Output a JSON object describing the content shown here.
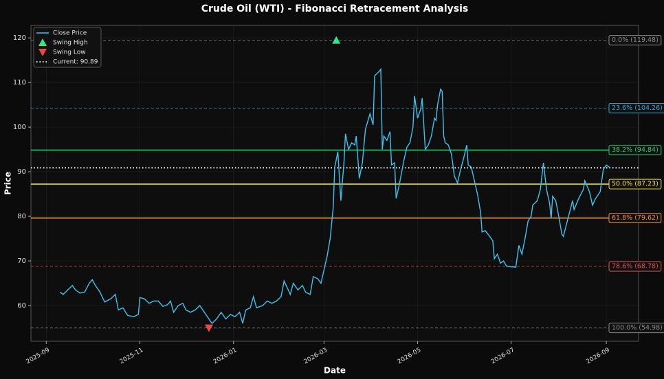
{
  "chart_data": {
    "type": "line",
    "title": "Crude Oil (WTI) - Fibonacci Retracement Analysis",
    "x_label": "Date",
    "y_label": "Price",
    "xlim": [
      "2025-08-22",
      "2026-09-22"
    ],
    "xticks": [
      "2025-09",
      "2025-11",
      "2026-01",
      "2026-03",
      "2026-05",
      "2026-07",
      "2026-09"
    ],
    "ylim": [
      52,
      122.8
    ],
    "yticks": [
      60,
      70,
      80,
      90,
      100,
      110,
      120
    ],
    "grid": true,
    "legend": "upper left",
    "series": [
      {
        "name": "Close Price",
        "color": "#3ec3ef",
        "x": [
          "2025-09-10",
          "2025-09-12",
          "2025-09-15",
          "2025-09-18",
          "2025-09-20",
          "2025-09-23",
          "2025-09-26",
          "2025-09-29",
          "2025-10-01",
          "2025-10-03",
          "2025-10-06",
          "2025-10-09",
          "2025-10-13",
          "2025-10-16",
          "2025-10-18",
          "2025-10-21",
          "2025-10-24",
          "2025-10-28",
          "2025-10-31",
          "2025-11-01",
          "2025-11-04",
          "2025-11-07",
          "2025-11-10",
          "2025-11-13",
          "2025-11-16",
          "2025-11-19",
          "2025-11-21",
          "2025-11-23",
          "2025-11-26",
          "2025-11-29",
          "2025-12-01",
          "2025-12-04",
          "2025-12-07",
          "2025-12-10",
          "2025-12-13",
          "2025-12-16",
          "2025-12-18",
          "2025-12-21",
          "2025-12-24",
          "2025-12-27",
          "2025-12-30",
          "2026-01-02",
          "2026-01-05",
          "2026-01-07",
          "2026-01-09",
          "2026-01-12",
          "2026-01-14",
          "2026-01-16",
          "2026-01-20",
          "2026-01-23",
          "2026-01-26",
          "2026-01-29",
          "2026-02-01",
          "2026-02-03",
          "2026-02-05",
          "2026-02-07",
          "2026-02-09",
          "2026-02-12",
          "2026-02-15",
          "2026-02-17",
          "2026-02-20",
          "2026-02-22",
          "2026-02-25",
          "2026-02-27",
          "2026-03-01",
          "2026-03-03",
          "2026-03-05",
          "2026-03-07",
          "2026-03-08",
          "2026-03-10",
          "2026-03-12",
          "2026-03-14",
          "2026-03-15",
          "2026-03-17",
          "2026-03-19",
          "2026-03-21",
          "2026-03-22",
          "2026-03-24",
          "2026-03-26",
          "2026-03-28",
          "2026-03-31",
          "2026-04-02",
          "2026-04-03",
          "2026-04-06",
          "2026-04-07",
          "2026-04-08",
          "2026-04-09",
          "2026-04-11",
          "2026-04-13",
          "2026-04-14",
          "2026-04-16",
          "2026-04-17",
          "2026-04-19",
          "2026-04-22",
          "2026-04-24",
          "2026-04-26",
          "2026-04-28",
          "2026-04-29",
          "2026-05-01",
          "2026-05-03",
          "2026-05-04",
          "2026-05-06",
          "2026-05-08",
          "2026-05-10",
          "2026-05-12",
          "2026-05-13",
          "2026-05-14",
          "2026-05-16",
          "2026-05-17",
          "2026-05-18",
          "2026-05-19",
          "2026-05-21",
          "2026-05-23",
          "2026-05-25",
          "2026-05-27",
          "2026-05-29",
          "2026-05-31",
          "2026-06-02",
          "2026-06-03",
          "2026-06-05",
          "2026-06-07",
          "2026-06-09",
          "2026-06-11",
          "2026-06-12",
          "2026-06-14",
          "2026-06-17",
          "2026-06-19",
          "2026-06-20",
          "2026-06-22",
          "2026-06-24",
          "2026-06-26",
          "2026-06-28",
          "2026-07-01",
          "2026-07-04",
          "2026-07-06",
          "2026-07-08",
          "2026-07-10",
          "2026-07-12",
          "2026-07-14",
          "2026-07-15",
          "2026-07-18",
          "2026-07-20",
          "2026-07-22",
          "2026-07-24",
          "2026-07-26",
          "2026-07-27",
          "2026-07-28",
          "2026-07-30",
          "2026-08-01",
          "2026-08-03",
          "2026-08-04",
          "2026-08-07",
          "2026-08-10",
          "2026-08-11",
          "2026-08-14",
          "2026-08-17",
          "2026-08-18",
          "2026-08-21",
          "2026-08-23",
          "2026-08-25",
          "2026-08-28",
          "2026-08-30",
          "2026-09-01",
          "2026-09-03"
        ],
        "values": [
          63,
          62.5,
          63.5,
          64.5,
          63.5,
          62.8,
          63,
          65,
          65.8,
          64.5,
          63,
          60.8,
          61.5,
          62.5,
          59,
          59.5,
          57.8,
          57.5,
          58,
          61.8,
          61.5,
          60.5,
          61,
          61,
          59.8,
          60.2,
          61,
          58.5,
          60,
          60.5,
          59,
          58.5,
          59,
          60,
          58.5,
          57,
          56,
          57,
          58.5,
          57,
          58,
          57.5,
          58.5,
          56,
          59,
          59.5,
          62,
          59.5,
          60,
          61,
          60.5,
          61,
          62,
          65.5,
          64,
          62.5,
          65,
          63.5,
          64.5,
          63,
          62.5,
          66.5,
          66,
          65,
          68,
          71,
          75,
          82,
          91,
          94.5,
          83.5,
          92,
          98.5,
          95,
          96.5,
          96,
          98,
          88.5,
          92,
          99.5,
          103,
          100.5,
          111.5,
          112.5,
          113,
          95,
          98,
          97,
          99,
          91.5,
          92,
          84,
          87,
          92.5,
          95.5,
          96.5,
          100,
          107,
          102,
          104,
          106.5,
          95,
          96,
          98,
          102,
          101.5,
          105,
          108.5,
          108,
          98,
          96.5,
          96,
          94,
          89,
          87.5,
          90.5,
          93,
          96,
          91.5,
          91,
          88,
          85,
          81,
          76.5,
          76.8,
          75.5,
          74.5,
          70.5,
          71.5,
          69.5,
          70,
          68.8,
          68.7,
          68.6,
          73.5,
          71.5,
          75,
          79,
          80,
          82.5,
          83.5,
          86,
          92,
          86,
          83,
          79.5,
          84.5,
          83.5,
          80,
          76,
          75.5,
          79.5,
          83.5,
          81.5,
          84,
          86,
          88,
          85.5,
          82.5,
          84,
          85.5,
          90.5,
          91.5,
          91
        ]
      }
    ],
    "swing_high": {
      "name": "Swing High",
      "x": "2026-03-09",
      "value": 119.48,
      "color": "#2ee88a"
    },
    "swing_low": {
      "name": "Swing Low",
      "x": "2025-12-16",
      "value": 54.98,
      "color": "#e84a4a"
    },
    "current": {
      "name": "Current: 90.89",
      "value": 90.89,
      "color": "#ffffff"
    },
    "levels": [
      {
        "label": "0.0% (119.48)",
        "value": 119.48,
        "color": "#8a8a8a",
        "style": "dashed"
      },
      {
        "label": "23.6% (104.26)",
        "value": 104.26,
        "color": "#2fa8d8",
        "style": "dashed"
      },
      {
        "label": "38.2% (94.84)",
        "value": 94.84,
        "color": "#2ecc71",
        "style": "solid"
      },
      {
        "label": "50.0% (87.23)",
        "value": 87.23,
        "color": "#e8de4a",
        "style": "solid"
      },
      {
        "label": "61.8% (79.62)",
        "value": 79.62,
        "color": "#f08a3c",
        "style": "solid"
      },
      {
        "label": "78.6% (68.78)",
        "value": 68.78,
        "color": "#e05050",
        "style": "dashed"
      },
      {
        "label": "100.0% (54.98)",
        "value": 54.98,
        "color": "#8a8a8a",
        "style": "dashed"
      }
    ]
  }
}
